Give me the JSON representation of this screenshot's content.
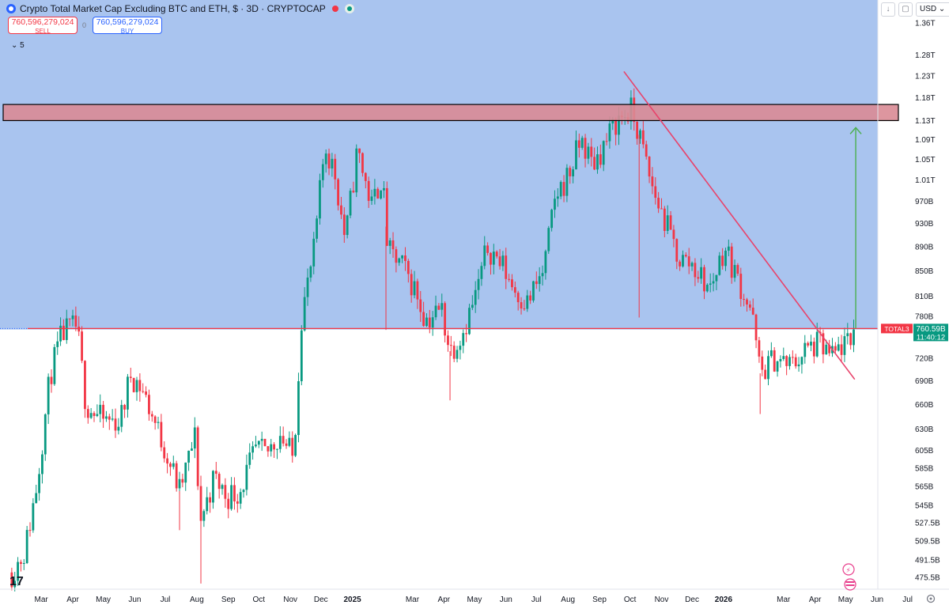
{
  "header": {
    "title": "Crypto Total Market Cap Excluding BTC and ETH, $ · 3D · CRYPTOCAP",
    "sell_value": "760,596,279,024",
    "sell_label": "SELL",
    "buy_value": "760,596,279,024",
    "buy_label": "BUY",
    "spread": "0",
    "indicators_count": "5",
    "currency": "USD"
  },
  "colors": {
    "up": "#089981",
    "down": "#f23645",
    "resistance_fill": "#d98b95",
    "trendline": "#e8436b",
    "support": "#f23645",
    "arrow": "#4caf50",
    "price_label_bg": "#089981"
  },
  "chart_data": {
    "type": "candlestick",
    "y_scale": "log",
    "ylim": [
      465,
      1420
    ],
    "y_ticks": [
      {
        "label": "1.36T",
        "value": 1360
      },
      {
        "label": "1.28T",
        "value": 1280
      },
      {
        "label": "1.23T",
        "value": 1230
      },
      {
        "label": "1.18T",
        "value": 1180
      },
      {
        "label": "1.13T",
        "value": 1130
      },
      {
        "label": "1.09T",
        "value": 1090
      },
      {
        "label": "1.05T",
        "value": 1050
      },
      {
        "label": "1.01T",
        "value": 1010
      },
      {
        "label": "970B",
        "value": 970
      },
      {
        "label": "930B",
        "value": 930
      },
      {
        "label": "890B",
        "value": 890
      },
      {
        "label": "850B",
        "value": 850
      },
      {
        "label": "810B",
        "value": 810
      },
      {
        "label": "780B",
        "value": 780
      },
      {
        "label": "720B",
        "value": 720
      },
      {
        "label": "690B",
        "value": 690
      },
      {
        "label": "660B",
        "value": 660
      },
      {
        "label": "630B",
        "value": 630
      },
      {
        "label": "605B",
        "value": 605
      },
      {
        "label": "585B",
        "value": 585
      },
      {
        "label": "565B",
        "value": 565
      },
      {
        "label": "545B",
        "value": 545
      },
      {
        "label": "527.5B",
        "value": 527.5
      },
      {
        "label": "509.5B",
        "value": 509.5
      },
      {
        "label": "491.5B",
        "value": 491.5
      },
      {
        "label": "475.5B",
        "value": 475.5
      }
    ],
    "x_ticks": [
      {
        "label": "Mar",
        "date": "2024-03-01"
      },
      {
        "label": "Apr",
        "date": "2024-04-01"
      },
      {
        "label": "May",
        "date": "2024-05-01"
      },
      {
        "label": "Jun",
        "date": "2024-06-01"
      },
      {
        "label": "Jul",
        "date": "2024-07-01"
      },
      {
        "label": "Aug",
        "date": "2024-08-01"
      },
      {
        "label": "Sep",
        "date": "2024-09-01"
      },
      {
        "label": "Oct",
        "date": "2024-10-01"
      },
      {
        "label": "Nov",
        "date": "2024-11-01"
      },
      {
        "label": "Dec",
        "date": "2024-12-01"
      },
      {
        "label": "2025",
        "date": "2025-01-01",
        "bold": true
      },
      {
        "label": "Mar",
        "date": "2025-03-01"
      },
      {
        "label": "Apr",
        "date": "2025-04-01"
      },
      {
        "label": "May",
        "date": "2025-05-01"
      },
      {
        "label": "Jun",
        "date": "2025-06-01"
      },
      {
        "label": "Jul",
        "date": "2025-07-01"
      },
      {
        "label": "Aug",
        "date": "2025-08-01"
      },
      {
        "label": "Sep",
        "date": "2025-09-01"
      },
      {
        "label": "Oct",
        "date": "2025-10-01"
      },
      {
        "label": "Nov",
        "date": "2025-11-01"
      },
      {
        "label": "Dec",
        "date": "2025-12-01"
      },
      {
        "label": "2026",
        "date": "2026-01-01",
        "bold": true
      },
      {
        "label": "Mar",
        "date": "2026-03-01"
      },
      {
        "label": "Apr",
        "date": "2026-04-01"
      },
      {
        "label": "May",
        "date": "2026-05-01"
      },
      {
        "label": "Jun",
        "date": "2026-06-01"
      },
      {
        "label": "Jul",
        "date": "2026-07-01"
      }
    ],
    "path_points": [
      [
        "2024-02-01",
        480
      ],
      [
        "2024-02-14",
        500
      ],
      [
        "2024-02-26",
        570
      ],
      [
        "2024-03-10",
        700
      ],
      [
        "2024-03-22",
        755
      ],
      [
        "2024-04-05",
        765
      ],
      [
        "2024-04-14",
        660
      ],
      [
        "2024-04-30",
        640
      ],
      [
        "2024-05-18",
        640
      ],
      [
        "2024-05-28",
        700
      ],
      [
        "2024-06-08",
        680
      ],
      [
        "2024-06-20",
        640
      ],
      [
        "2024-07-03",
        600
      ],
      [
        "2024-07-15",
        560
      ],
      [
        "2024-07-30",
        620
      ],
      [
        "2024-08-05",
        530
      ],
      [
        "2024-08-18",
        575
      ],
      [
        "2024-08-30",
        555
      ],
      [
        "2024-09-12",
        560
      ],
      [
        "2024-09-28",
        605
      ],
      [
        "2024-10-08",
        600
      ],
      [
        "2024-10-22",
        625
      ],
      [
        "2024-11-04",
        595
      ],
      [
        "2024-11-12",
        780
      ],
      [
        "2024-11-24",
        880
      ],
      [
        "2024-12-05",
        1080
      ],
      [
        "2024-12-15",
        1020
      ],
      [
        "2024-12-25",
        900
      ],
      [
        "2025-01-06",
        1070
      ],
      [
        "2025-01-20",
        960
      ],
      [
        "2025-01-30",
        1020
      ],
      [
        "2025-02-05",
        880
      ],
      [
        "2025-02-18",
        860
      ],
      [
        "2025-03-04",
        820
      ],
      [
        "2025-03-14",
        775
      ],
      [
        "2025-03-30",
        790
      ],
      [
        "2025-04-07",
        730
      ],
      [
        "2025-04-20",
        760
      ],
      [
        "2025-05-02",
        810
      ],
      [
        "2025-05-14",
        890
      ],
      [
        "2025-05-28",
        860
      ],
      [
        "2025-06-10",
        820
      ],
      [
        "2025-06-22",
        800
      ],
      [
        "2025-07-08",
        850
      ],
      [
        "2025-07-20",
        980
      ],
      [
        "2025-08-02",
        1020
      ],
      [
        "2025-08-14",
        1090
      ],
      [
        "2025-08-25",
        1040
      ],
      [
        "2025-09-06",
        1080
      ],
      [
        "2025-09-18",
        1130
      ],
      [
        "2025-10-02",
        1150
      ],
      [
        "2025-10-10",
        1100
      ],
      [
        "2025-10-22",
        1000
      ],
      [
        "2025-11-05",
        930
      ],
      [
        "2025-11-18",
        870
      ],
      [
        "2025-12-02",
        860
      ],
      [
        "2025-12-18",
        820
      ],
      [
        "2026-01-02",
        890
      ],
      [
        "2026-01-14",
        840
      ],
      [
        "2026-01-28",
        790
      ],
      [
        "2026-02-06",
        700
      ],
      [
        "2026-02-20",
        720
      ],
      [
        "2026-03-08",
        710
      ],
      [
        "2026-03-22",
        730
      ],
      [
        "2026-04-05",
        740
      ],
      [
        "2026-04-18",
        720
      ],
      [
        "2026-04-28",
        740
      ],
      [
        "2026-05-06",
        735
      ],
      [
        "2026-05-09",
        760.59
      ]
    ],
    "wicks": [
      {
        "date": "2024-08-05",
        "low": 470
      },
      {
        "date": "2024-07-15",
        "low": 520
      },
      {
        "date": "2025-04-07",
        "low": 665
      },
      {
        "date": "2025-10-10",
        "low": 778
      },
      {
        "date": "2026-02-06",
        "low": 648
      },
      {
        "date": "2025-02-03",
        "low": 760
      }
    ],
    "resistance_zone": {
      "low": 1130,
      "high": 1165
    },
    "support_level": 762,
    "trendline": {
      "start": [
        "2025-09-25",
        1240
      ],
      "end": [
        "2026-05-10",
        692
      ]
    },
    "target_arrow": {
      "date": "2026-05-11",
      "from": 762,
      "to": 1115
    },
    "last_price": {
      "label": "TOTAL3",
      "value": "760.59B",
      "countdown": "11:40:12",
      "num": 760.59
    }
  }
}
